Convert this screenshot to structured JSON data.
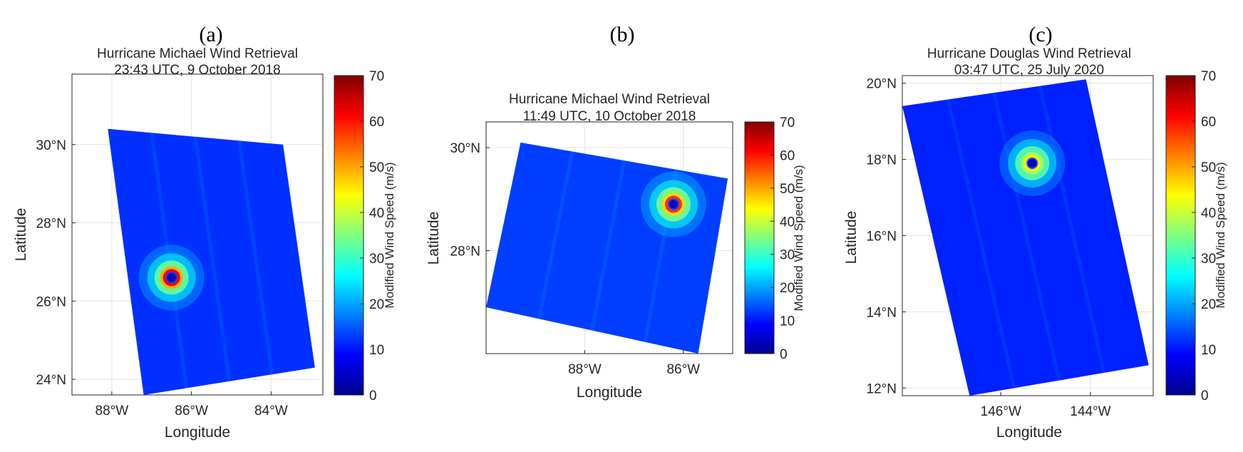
{
  "figure": {
    "panels": [
      "(a)",
      "(b)",
      "(c)"
    ]
  },
  "colormap": {
    "name": "jet",
    "stops": [
      "#00008f",
      "#0000ff",
      "#0080ff",
      "#00ffff",
      "#80ff80",
      "#ffff00",
      "#ff8000",
      "#ff0000",
      "#800000"
    ]
  },
  "chart_data": [
    {
      "type": "heatmap",
      "panel": "(a)",
      "title": "Hurricane Michael Wind Retrieval",
      "subtitle": "23:43 UTC, 9 October 2018",
      "xlabel": "Longitude",
      "ylabel": "Latitude",
      "colorbar_label": "Modified Wind Speed (m/s)",
      "clim": [
        0,
        70
      ],
      "colorbar_ticks": [
        "0",
        "10",
        "20",
        "30",
        "40",
        "50",
        "60",
        "70"
      ],
      "xlim": [
        -89.0,
        -82.7
      ],
      "ylim": [
        23.6,
        31.8
      ],
      "xticks": [
        -88,
        -86,
        -84
      ],
      "xtick_labels": [
        "88°W",
        "86°W",
        "84°W"
      ],
      "yticks": [
        24,
        26,
        28,
        30
      ],
      "ytick_labels": [
        "24°N",
        "26°N",
        "28°N",
        "30°N"
      ],
      "grid": true,
      "swath_corners": [
        [
          -88.1,
          30.4
        ],
        [
          -83.7,
          30.0
        ],
        [
          -82.9,
          24.3
        ],
        [
          -87.2,
          23.6
        ]
      ],
      "background_speed_ms": 12,
      "eye": {
        "lon": -86.5,
        "lat": 26.6,
        "eye_speed_ms": 3,
        "max_speed_ms": 62
      }
    },
    {
      "type": "heatmap",
      "panel": "(b)",
      "title": "Hurricane Michael Wind Retrieval",
      "subtitle": "11:49 UTC, 10 October 2018",
      "xlabel": "Longitude",
      "ylabel": "Latitude",
      "colorbar_label": "Modified Wind Speed (m/s)",
      "clim": [
        0,
        70
      ],
      "colorbar_ticks": [
        "0",
        "10",
        "20",
        "30",
        "40",
        "50",
        "60",
        "70"
      ],
      "xlim": [
        -90.0,
        -85.0
      ],
      "ylim": [
        26.0,
        30.5
      ],
      "xticks": [
        -88,
        -86
      ],
      "xtick_labels": [
        "88°W",
        "86°W"
      ],
      "yticks": [
        28,
        30
      ],
      "ytick_labels": [
        "28°N",
        "30°N"
      ],
      "grid": true,
      "swath_corners": [
        [
          -89.3,
          30.1
        ],
        [
          -85.1,
          29.4
        ],
        [
          -85.7,
          26.0
        ],
        [
          -90.0,
          26.9
        ]
      ],
      "background_speed_ms": 13,
      "eye": {
        "lon": -86.2,
        "lat": 28.9,
        "eye_speed_ms": 4,
        "max_speed_ms": 58
      }
    },
    {
      "type": "heatmap",
      "panel": "(c)",
      "title": "Hurricane Douglas Wind Retrieval",
      "subtitle": "03:47 UTC, 25 July 2020",
      "xlabel": "Longitude",
      "ylabel": "Latitude",
      "colorbar_label": "Modified Wind Speed (m/s)",
      "clim": [
        0,
        70
      ],
      "colorbar_ticks": [
        "0",
        "10",
        "20",
        "30",
        "40",
        "50",
        "60",
        "70"
      ],
      "xlim": [
        -148.2,
        -142.6
      ],
      "ylim": [
        11.8,
        20.2
      ],
      "xticks": [
        -146,
        -144
      ],
      "xtick_labels": [
        "146°W",
        "144°W"
      ],
      "yticks": [
        12,
        14,
        16,
        18,
        20
      ],
      "ytick_labels": [
        "12°N",
        "14°N",
        "16°N",
        "18°N",
        "20°N"
      ],
      "grid": true,
      "swath_corners": [
        [
          -148.2,
          19.4
        ],
        [
          -144.1,
          20.1
        ],
        [
          -142.7,
          12.6
        ],
        [
          -146.7,
          11.8
        ]
      ],
      "background_speed_ms": 11,
      "eye": {
        "lon": -145.3,
        "lat": 17.9,
        "eye_speed_ms": 4,
        "max_speed_ms": 45
      }
    }
  ]
}
